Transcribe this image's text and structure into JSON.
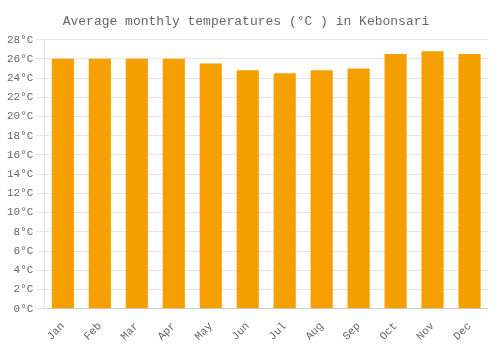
{
  "chart_data": {
    "type": "bar",
    "title": "Average monthly temperatures (°C ) in Kebonsari",
    "categories": [
      "Jan",
      "Feb",
      "Mar",
      "Apr",
      "May",
      "Jun",
      "Jul",
      "Aug",
      "Sep",
      "Oct",
      "Nov",
      "Dec"
    ],
    "values": [
      26.0,
      26.0,
      26.0,
      26.0,
      25.5,
      24.8,
      24.5,
      24.8,
      25.0,
      26.5,
      26.8,
      26.5
    ],
    "color": "#F5A000",
    "ylim": [
      0,
      28
    ],
    "yticks": [
      {
        "value": 0,
        "label": "0°C"
      },
      {
        "value": 2,
        "label": "2°C"
      },
      {
        "value": 4,
        "label": "4°C"
      },
      {
        "value": 6,
        "label": "6°C"
      },
      {
        "value": 8,
        "label": "8°C"
      },
      {
        "value": 10,
        "label": "10°C"
      },
      {
        "value": 12,
        "label": "12°C"
      },
      {
        "value": 14,
        "label": "14°C"
      },
      {
        "value": 16,
        "label": "16°C"
      },
      {
        "value": 18,
        "label": "18°C"
      },
      {
        "value": 20,
        "label": "20°C"
      },
      {
        "value": 22,
        "label": "22°C"
      },
      {
        "value": 24,
        "label": "24°C"
      },
      {
        "value": 26,
        "label": "26°C"
      },
      {
        "value": 28,
        "label": "28°C"
      }
    ],
    "grid": true
  }
}
